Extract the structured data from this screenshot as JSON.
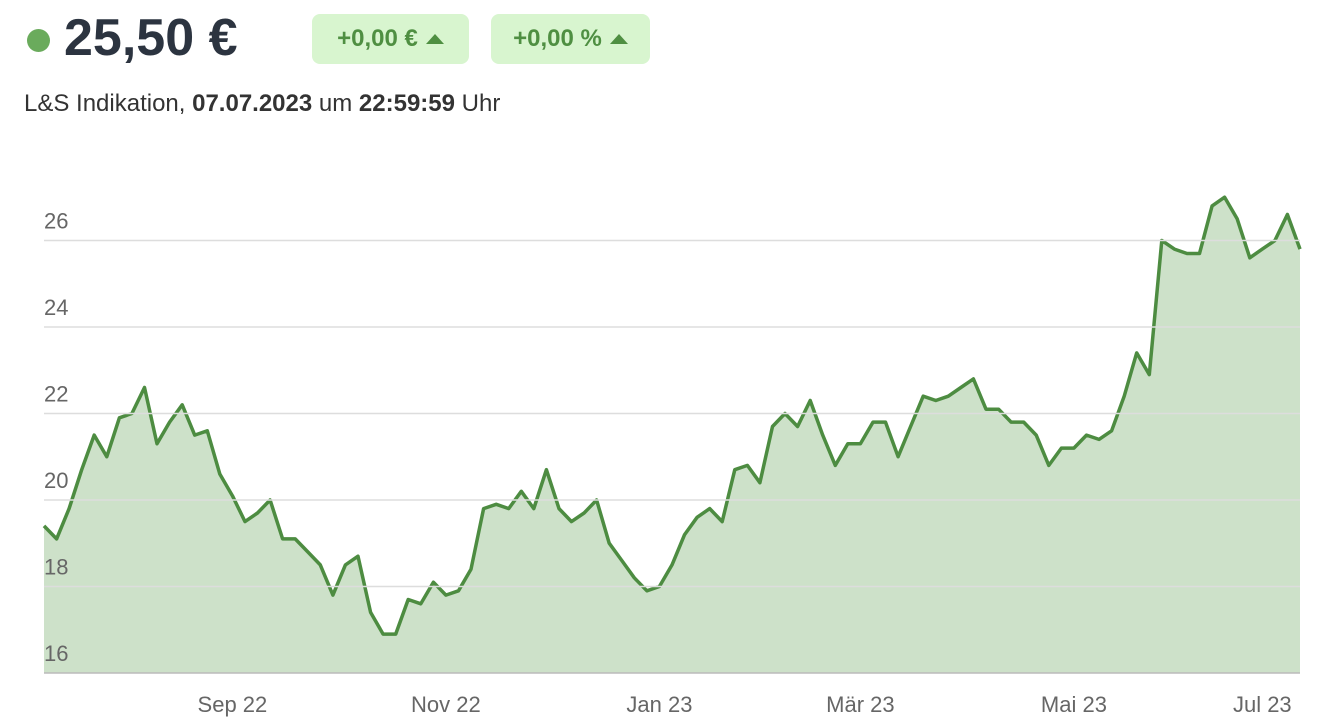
{
  "header": {
    "price": "25,50 €",
    "change_abs": "+0,00 €",
    "change_pct": "+0,00 %",
    "source": "L&S Indikation,",
    "date": "07.07.2023",
    "time_prefix": "um",
    "time": "22:59:59",
    "time_suffix": "Uhr"
  },
  "chart_data": {
    "type": "line",
    "categories": [
      null,
      null,
      null,
      null,
      null,
      null,
      null,
      null,
      null,
      null,
      null,
      null,
      null,
      null,
      null,
      "Sep 22",
      null,
      null,
      null,
      null,
      null,
      null,
      null,
      null,
      null,
      null,
      null,
      null,
      null,
      null,
      null,
      null,
      "Nov 22",
      null,
      null,
      null,
      null,
      null,
      null,
      null,
      null,
      null,
      null,
      null,
      null,
      null,
      null,
      null,
      null,
      "Jan 23",
      null,
      null,
      null,
      null,
      null,
      null,
      null,
      null,
      null,
      null,
      null,
      null,
      null,
      null,
      null,
      "Mär 23",
      null,
      null,
      null,
      null,
      null,
      null,
      null,
      null,
      null,
      null,
      null,
      null,
      null,
      null,
      null,
      null,
      "Mai 23",
      null,
      null,
      null,
      null,
      null,
      null,
      null,
      null,
      null,
      null,
      null,
      null,
      null,
      null,
      "Jul 23",
      null,
      null,
      null
    ],
    "series": [
      {
        "color": "#4d8c41",
        "fill": "#cde1c9",
        "values": [
          19.4,
          19.1,
          19.8,
          20.7,
          21.5,
          21.0,
          21.9,
          22.0,
          22.6,
          21.3,
          21.8,
          22.2,
          21.5,
          21.6,
          20.6,
          20.1,
          19.5,
          19.7,
          20.0,
          19.1,
          19.1,
          18.8,
          18.5,
          17.8,
          18.5,
          18.7,
          17.4,
          16.9,
          16.9,
          17.7,
          17.6,
          18.1,
          17.8,
          17.9,
          18.4,
          19.8,
          19.9,
          19.8,
          20.2,
          19.8,
          20.7,
          19.8,
          19.5,
          19.7,
          20.0,
          19.0,
          18.6,
          18.2,
          17.9,
          18.0,
          18.5,
          19.2,
          19.6,
          19.8,
          19.5,
          20.7,
          20.8,
          20.4,
          21.7,
          22.0,
          21.7,
          22.3,
          21.5,
          20.8,
          21.3,
          21.3,
          21.8,
          21.8,
          21.0,
          21.7,
          22.4,
          22.3,
          22.4,
          22.6,
          22.8,
          22.1,
          22.1,
          21.8,
          21.8,
          21.5,
          20.8,
          21.2,
          21.2,
          21.5,
          21.4,
          21.6,
          22.4,
          23.4,
          22.9,
          26.0,
          25.8,
          25.7,
          25.7,
          26.8,
          27.0,
          26.5,
          25.6,
          25.8,
          26.0,
          26.6,
          25.8
        ]
      }
    ],
    "ylim": [
      16,
      27.5
    ],
    "yticks": [
      16,
      18,
      20,
      22,
      24,
      26
    ],
    "grid": true
  }
}
